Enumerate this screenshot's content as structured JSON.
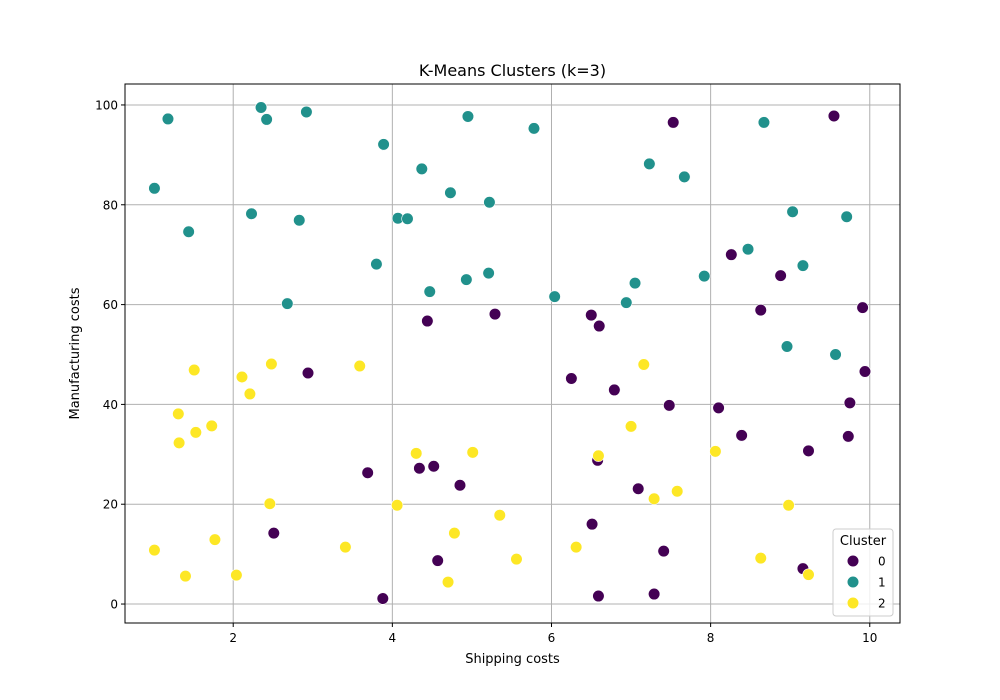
{
  "chart_data": {
    "type": "scatter",
    "title": "K-Means Clusters (k=3)",
    "xlabel": "Shipping costs",
    "ylabel": "Manufacturing costs",
    "xlim": [
      0.64,
      10.38
    ],
    "ylim": [
      -3.8,
      104.2
    ],
    "xticks": [
      2,
      4,
      6,
      8,
      10
    ],
    "yticks": [
      0,
      20,
      40,
      60,
      80,
      100
    ],
    "grid": true,
    "legend": {
      "title": "Cluster",
      "position": "lower-right"
    },
    "series": [
      {
        "name": "0",
        "color": "#440154",
        "points": [
          [
            7.53,
            96.5
          ],
          [
            9.55,
            97.8
          ],
          [
            8.26,
            70.0
          ],
          [
            8.88,
            65.8
          ],
          [
            9.91,
            59.4
          ],
          [
            8.63,
            58.9
          ],
          [
            4.44,
            56.7
          ],
          [
            5.29,
            58.1
          ],
          [
            6.5,
            57.9
          ],
          [
            6.6,
            55.7
          ],
          [
            2.94,
            46.3
          ],
          [
            6.25,
            45.2
          ],
          [
            9.94,
            46.6
          ],
          [
            6.79,
            42.9
          ],
          [
            9.75,
            40.3
          ],
          [
            7.48,
            39.8
          ],
          [
            8.1,
            39.3
          ],
          [
            8.39,
            33.8
          ],
          [
            9.73,
            33.6
          ],
          [
            9.23,
            30.7
          ],
          [
            6.58,
            28.8
          ],
          [
            3.69,
            26.3
          ],
          [
            4.34,
            27.2
          ],
          [
            4.52,
            27.6
          ],
          [
            4.85,
            23.8
          ],
          [
            7.09,
            23.1
          ],
          [
            6.51,
            16.0
          ],
          [
            2.51,
            14.2
          ],
          [
            4.57,
            8.7
          ],
          [
            7.41,
            10.6
          ],
          [
            9.16,
            7.1
          ],
          [
            3.88,
            1.1
          ],
          [
            6.59,
            1.6
          ],
          [
            7.29,
            2.0
          ]
        ]
      },
      {
        "name": "1",
        "color": "#21918c",
        "points": [
          [
            2.35,
            99.5
          ],
          [
            2.92,
            98.6
          ],
          [
            1.18,
            97.2
          ],
          [
            2.42,
            97.1
          ],
          [
            4.95,
            97.7
          ],
          [
            5.78,
            95.3
          ],
          [
            8.67,
            96.5
          ],
          [
            3.89,
            92.1
          ],
          [
            1.01,
            83.3
          ],
          [
            4.37,
            87.2
          ],
          [
            4.73,
            82.4
          ],
          [
            5.22,
            80.5
          ],
          [
            7.23,
            88.2
          ],
          [
            7.67,
            85.6
          ],
          [
            2.23,
            78.2
          ],
          [
            2.83,
            76.9
          ],
          [
            4.07,
            77.3
          ],
          [
            4.19,
            77.2
          ],
          [
            1.44,
            74.6
          ],
          [
            9.03,
            78.6
          ],
          [
            9.71,
            77.6
          ],
          [
            3.8,
            68.1
          ],
          [
            8.47,
            71.1
          ],
          [
            9.16,
            67.8
          ],
          [
            4.47,
            62.6
          ],
          [
            4.93,
            65.0
          ],
          [
            5.21,
            66.3
          ],
          [
            7.05,
            64.3
          ],
          [
            7.92,
            65.7
          ],
          [
            2.68,
            60.2
          ],
          [
            6.04,
            61.6
          ],
          [
            6.94,
            60.4
          ],
          [
            8.96,
            51.6
          ],
          [
            9.57,
            50.0
          ]
        ]
      },
      {
        "name": "2",
        "color": "#fde725",
        "points": [
          [
            1.51,
            46.9
          ],
          [
            2.11,
            45.5
          ],
          [
            2.48,
            48.1
          ],
          [
            3.59,
            47.7
          ],
          [
            7.16,
            48.0
          ],
          [
            2.21,
            42.1
          ],
          [
            1.31,
            38.1
          ],
          [
            1.73,
            35.7
          ],
          [
            1.53,
            34.4
          ],
          [
            1.32,
            32.3
          ],
          [
            7.0,
            35.6
          ],
          [
            4.3,
            30.2
          ],
          [
            5.01,
            30.4
          ],
          [
            6.59,
            29.7
          ],
          [
            8.06,
            30.6
          ],
          [
            7.29,
            21.1
          ],
          [
            7.58,
            22.6
          ],
          [
            2.46,
            20.1
          ],
          [
            4.06,
            19.8
          ],
          [
            5.35,
            17.8
          ],
          [
            8.98,
            19.8
          ],
          [
            4.78,
            14.2
          ],
          [
            1.77,
            12.9
          ],
          [
            3.41,
            11.4
          ],
          [
            6.31,
            11.4
          ],
          [
            1.01,
            10.8
          ],
          [
            5.56,
            9.0
          ],
          [
            8.63,
            9.2
          ],
          [
            1.4,
            5.6
          ],
          [
            2.04,
            5.8
          ],
          [
            4.7,
            4.4
          ],
          [
            9.23,
            5.9
          ]
        ]
      }
    ]
  }
}
